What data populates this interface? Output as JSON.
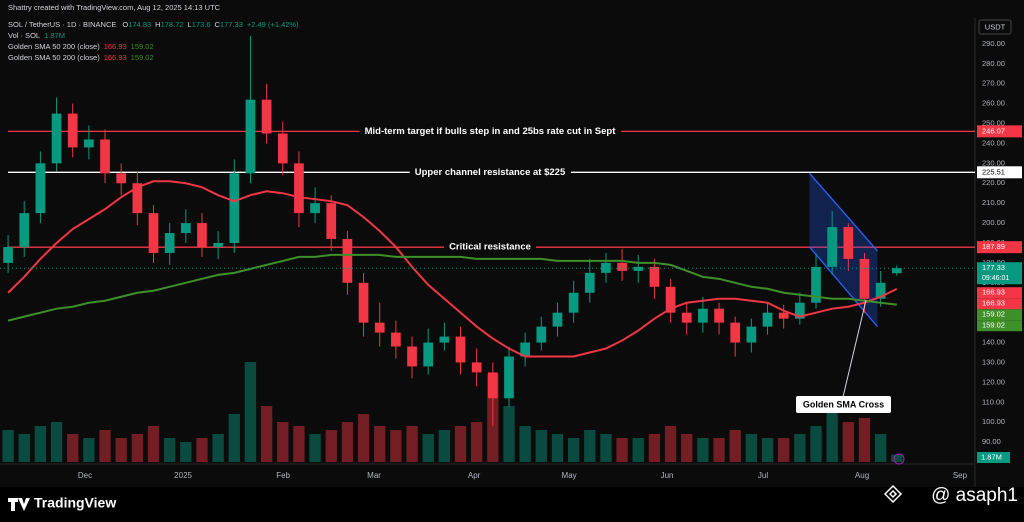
{
  "chart_data": {
    "type": "candlestick",
    "credit": "Shattry created with TradingView.com, Aug 12, 2025 14:13 UTC",
    "symbol": "SOL / TetherUS · 1D · BINANCE",
    "ohlc": [
      {
        "label": "O",
        "value": 174.83
      },
      {
        "label": "H",
        "value": 178.72
      },
      {
        "label": "L",
        "value": 173.6
      },
      {
        "label": "C",
        "value": 177.33
      }
    ],
    "change": "+2.49 (+1.42%)",
    "volume_label": "Vol · SOL",
    "volume_value": "1.87M",
    "indicators": [
      {
        "name": "Golden SMA 50 200 (close)",
        "values": [
          166.93,
          159.02
        ]
      },
      {
        "name": "Golden SMA 50 200 (close)",
        "values": [
          166.93,
          159.02
        ]
      }
    ],
    "currency": "USDT",
    "countdown": "09:46:01",
    "up_color": "#089981",
    "down_color": "#f23645",
    "open": [
      180,
      188,
      205,
      230,
      255,
      238,
      242,
      225,
      220,
      205,
      185,
      195,
      200,
      188,
      190,
      225,
      262,
      245,
      230,
      205,
      210,
      192,
      170,
      150,
      145,
      138,
      128,
      140,
      143,
      130,
      125,
      112,
      133,
      140,
      148,
      155,
      165,
      175,
      180,
      176,
      178,
      168,
      155,
      150,
      157,
      150,
      140,
      148,
      155,
      152,
      160,
      178,
      198,
      182,
      162,
      174.83
    ],
    "high": [
      194,
      211,
      236,
      263,
      260,
      249,
      247,
      230,
      226,
      209,
      200,
      207,
      205,
      196,
      232,
      294,
      270,
      251,
      236,
      218,
      214,
      196,
      175,
      160,
      151,
      143,
      147,
      150,
      148,
      137,
      130,
      138,
      145,
      153,
      160,
      171,
      182,
      185,
      187,
      184,
      182,
      172,
      160,
      163,
      160,
      153,
      152,
      160,
      159,
      165,
      185,
      206,
      200,
      185,
      176,
      178.72
    ],
    "low": [
      175,
      183,
      200,
      226,
      233,
      232,
      220,
      214,
      199,
      180,
      179,
      190,
      183,
      182,
      185,
      220,
      240,
      224,
      198,
      200,
      186,
      164,
      143,
      138,
      132,
      122,
      124,
      136,
      124,
      118,
      98,
      108,
      128,
      136,
      143,
      150,
      160,
      170,
      171,
      170,
      162,
      150,
      144,
      145,
      144,
      133,
      135,
      144,
      147,
      149,
      157,
      174,
      176,
      155,
      158,
      173.6
    ],
    "close": [
      188,
      205,
      230,
      255,
      238,
      242,
      225,
      220,
      205,
      185,
      195,
      200,
      188,
      190,
      225,
      262,
      245,
      230,
      205,
      210,
      192,
      170,
      150,
      145,
      138,
      128,
      140,
      143,
      130,
      125,
      112,
      133,
      140,
      148,
      155,
      165,
      175,
      180,
      176,
      178,
      168,
      155,
      150,
      157,
      150,
      140,
      148,
      155,
      152,
      160,
      178,
      198,
      182,
      162,
      170,
      177.33
    ],
    "volume": [
      8,
      7,
      9,
      10,
      7,
      6,
      8,
      6,
      7,
      9,
      6,
      5,
      6,
      7,
      12,
      25,
      14,
      10,
      9,
      7,
      8,
      10,
      12,
      9,
      8,
      9,
      7,
      8,
      9,
      10,
      22,
      14,
      9,
      8,
      7,
      6,
      8,
      7,
      6,
      6,
      7,
      9,
      7,
      6,
      6,
      8,
      7,
      6,
      6,
      7,
      9,
      14,
      10,
      11,
      7,
      1.87
    ],
    "vlim": [
      0,
      60
    ],
    "lines": [
      {
        "color": "#f23645",
        "values": [
          165,
          173,
          182,
          190,
          197,
          202,
          207,
          213,
          218,
          221,
          221,
          220,
          218,
          214,
          211,
          214,
          216,
          215,
          213,
          212,
          211,
          209,
          203,
          196,
          188,
          178,
          169,
          162,
          155,
          148,
          142,
          137,
          133,
          133,
          133,
          133,
          135,
          137,
          141,
          146,
          152,
          157,
          160,
          161,
          162,
          162,
          161,
          160,
          156,
          153,
          155,
          157,
          158,
          160,
          163,
          166.93
        ]
      },
      {
        "color": "#3f8f2a",
        "values": [
          151,
          153,
          155,
          157,
          158,
          160,
          161,
          163,
          165,
          166,
          168,
          170,
          172,
          174,
          175,
          177,
          179,
          181,
          183,
          183,
          184,
          184,
          184,
          184,
          183,
          183,
          183,
          183,
          183,
          182,
          182,
          182,
          182,
          182,
          181,
          181,
          181,
          181,
          181,
          180,
          180,
          179,
          176,
          173,
          172,
          170,
          168,
          167,
          165,
          164,
          163,
          162,
          162,
          161,
          160,
          159.02
        ]
      }
    ],
    "levels": [
      {
        "value": 246.07,
        "label": "Mid-term target if bulls step in and 25bs rate cut in Sept",
        "color": "#f23645"
      },
      {
        "value": 225.51,
        "label": "Upper channel resistance at $225",
        "color": "#ffffff"
      },
      {
        "value": 187.89,
        "label": "Critical resistance",
        "color": "#f23645"
      }
    ],
    "channel": {
      "x": [
        49.6,
        53.8
      ],
      "upper": [
        225,
        186
      ],
      "lower": [
        188,
        148
      ]
    },
    "annotation": "Golden SMA Cross",
    "xlim": [
      -0.5,
      59.84
    ],
    "xticks": [
      {
        "value": 4.76,
        "label": "Dec"
      },
      {
        "value": 10.83,
        "label": "2025"
      },
      {
        "value": 17.02,
        "label": "Feb"
      },
      {
        "value": 22.65,
        "label": "Mar"
      },
      {
        "value": 28.84,
        "label": "Apr"
      },
      {
        "value": 34.72,
        "label": "May"
      },
      {
        "value": 40.78,
        "label": "Jun"
      },
      {
        "value": 46.72,
        "label": "Jul"
      },
      {
        "value": 52.85,
        "label": "Aug"
      },
      {
        "value": 58.91,
        "label": "Sep"
      }
    ],
    "ylim": [
      80,
      302
    ],
    "yticks": [
      {
        "value": 90,
        "label": "90.00"
      },
      {
        "value": 100,
        "label": "100.00"
      },
      {
        "value": 110,
        "label": "110.00"
      },
      {
        "value": 120,
        "label": "120.00"
      },
      {
        "value": 130,
        "label": "130.00"
      },
      {
        "value": 140,
        "label": "140.00"
      },
      {
        "value": 150,
        "label": "150.00"
      },
      {
        "value": 160,
        "label": "160.00"
      },
      {
        "value": 170,
        "label": "170.00"
      },
      {
        "value": 180,
        "label": "180.00"
      },
      {
        "value": 190,
        "label": "190.00"
      },
      {
        "value": 200,
        "label": "200.00"
      },
      {
        "value": 210,
        "label": "210.00"
      },
      {
        "value": 220,
        "label": "220.00"
      },
      {
        "value": 230,
        "label": "230.00"
      },
      {
        "value": 240,
        "label": "240.00"
      },
      {
        "value": 250,
        "label": "250.00"
      },
      {
        "value": 260,
        "label": "260.00"
      },
      {
        "value": 270,
        "label": "270.00"
      },
      {
        "value": 280,
        "label": "280.00"
      },
      {
        "value": 290,
        "label": "290.00"
      }
    ],
    "grid": true
  },
  "footer": {
    "brand": "TradingView",
    "handle": "@ asaph1"
  }
}
